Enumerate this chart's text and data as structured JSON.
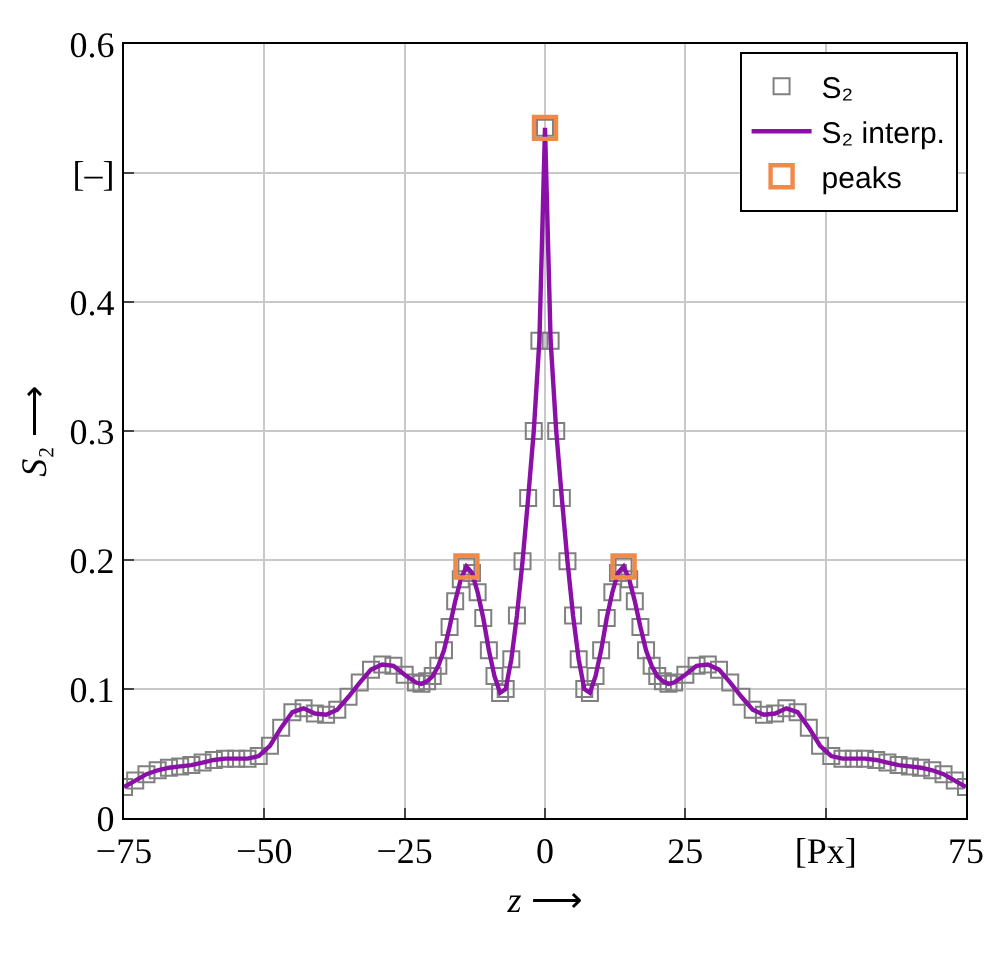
{
  "chart_data": {
    "type": "scatter",
    "xlabel": "z ⟶",
    "ylabel": "S₂ ⟶",
    "xlim": [
      -75,
      75
    ],
    "ylim": [
      0,
      0.6
    ],
    "xticks": [
      -75,
      -50,
      -25,
      0,
      25,
      {
        "value": 50,
        "label": "[Px]"
      },
      75
    ],
    "yticks": [
      0,
      0.1,
      0.2,
      0.3,
      0.4,
      {
        "value": 0.5,
        "label": "[–]"
      },
      0.6
    ],
    "grid": true,
    "legend": "top right",
    "series": [
      {
        "name": "S₂",
        "marker": "square",
        "color": "#808080",
        "x": [
          -75,
          -73,
          -71,
          -69,
          -67,
          -65,
          -63,
          -61,
          -59,
          -57,
          -55,
          -53,
          -51,
          -49,
          -47,
          -45,
          -43,
          -41,
          -39,
          -37,
          -35,
          -33,
          -31,
          -29,
          -27,
          -25,
          -23,
          -22,
          -21,
          -20,
          -19,
          -18,
          -17,
          -16,
          -15,
          -14,
          -13,
          -12,
          -11,
          -10,
          -9,
          -8,
          -7,
          -6,
          -5,
          -4,
          -3,
          -2,
          -1,
          0,
          1,
          2,
          3,
          4,
          5,
          6,
          7,
          8,
          9,
          10,
          11,
          12,
          13,
          14,
          15,
          16,
          17,
          18,
          19,
          20,
          21,
          22,
          23,
          25,
          27,
          29,
          31,
          33,
          35,
          37,
          39,
          41,
          43,
          45,
          47,
          49,
          51,
          53,
          55,
          57,
          59,
          61,
          63,
          65,
          67,
          69,
          71,
          73,
          75
        ],
        "values": [
          0.024,
          0.029,
          0.034,
          0.037,
          0.039,
          0.04,
          0.041,
          0.043,
          0.045,
          0.046,
          0.046,
          0.046,
          0.048,
          0.056,
          0.07,
          0.082,
          0.085,
          0.081,
          0.08,
          0.084,
          0.094,
          0.105,
          0.115,
          0.119,
          0.118,
          0.111,
          0.105,
          0.104,
          0.106,
          0.11,
          0.118,
          0.13,
          0.148,
          0.168,
          0.185,
          0.195,
          0.19,
          0.175,
          0.155,
          0.13,
          0.11,
          0.097,
          0.1,
          0.123,
          0.157,
          0.199,
          0.248,
          0.3,
          0.37,
          0.535,
          0.37,
          0.3,
          0.248,
          0.199,
          0.157,
          0.123,
          0.1,
          0.097,
          0.11,
          0.13,
          0.155,
          0.175,
          0.19,
          0.195,
          0.185,
          0.168,
          0.148,
          0.13,
          0.118,
          0.11,
          0.106,
          0.104,
          0.105,
          0.111,
          0.118,
          0.119,
          0.115,
          0.105,
          0.094,
          0.084,
          0.08,
          0.081,
          0.085,
          0.082,
          0.07,
          0.056,
          0.048,
          0.046,
          0.046,
          0.046,
          0.045,
          0.043,
          0.041,
          0.04,
          0.039,
          0.037,
          0.034,
          0.029,
          0.024
        ]
      },
      {
        "name": "S₂ interp.",
        "type": "line",
        "marker": "none",
        "line_style": "solid",
        "color": "#8b10a8",
        "x": [
          -75,
          -73,
          -71,
          -69,
          -67,
          -65,
          -63,
          -61,
          -59,
          -57,
          -55,
          -53,
          -51,
          -49,
          -47,
          -45,
          -43,
          -41,
          -39,
          -37,
          -35,
          -33,
          -31,
          -29,
          -27,
          -25,
          -23,
          -22,
          -21,
          -20,
          -19,
          -18,
          -17,
          -16,
          -15,
          -14,
          -13,
          -12,
          -11,
          -10,
          -9,
          -8,
          -7,
          -6,
          -5,
          -4,
          -3,
          -2,
          -1,
          0,
          1,
          2,
          3,
          4,
          5,
          6,
          7,
          8,
          9,
          10,
          11,
          12,
          13,
          14,
          15,
          16,
          17,
          18,
          19,
          20,
          21,
          22,
          23,
          25,
          27,
          29,
          31,
          33,
          35,
          37,
          39,
          41,
          43,
          45,
          47,
          49,
          51,
          53,
          55,
          57,
          59,
          61,
          63,
          65,
          67,
          69,
          71,
          73,
          75
        ],
        "values": [
          0.024,
          0.029,
          0.034,
          0.037,
          0.039,
          0.04,
          0.041,
          0.043,
          0.045,
          0.046,
          0.046,
          0.046,
          0.048,
          0.056,
          0.07,
          0.082,
          0.085,
          0.081,
          0.08,
          0.084,
          0.094,
          0.105,
          0.115,
          0.119,
          0.118,
          0.111,
          0.105,
          0.104,
          0.106,
          0.11,
          0.118,
          0.13,
          0.148,
          0.168,
          0.185,
          0.195,
          0.19,
          0.175,
          0.155,
          0.13,
          0.11,
          0.097,
          0.1,
          0.123,
          0.157,
          0.199,
          0.248,
          0.3,
          0.37,
          0.535,
          0.37,
          0.3,
          0.248,
          0.199,
          0.157,
          0.123,
          0.1,
          0.097,
          0.11,
          0.13,
          0.155,
          0.175,
          0.19,
          0.195,
          0.185,
          0.168,
          0.148,
          0.13,
          0.118,
          0.11,
          0.106,
          0.104,
          0.105,
          0.111,
          0.118,
          0.119,
          0.115,
          0.105,
          0.094,
          0.084,
          0.08,
          0.081,
          0.085,
          0.082,
          0.07,
          0.056,
          0.048,
          0.046,
          0.046,
          0.046,
          0.045,
          0.043,
          0.041,
          0.04,
          0.039,
          0.037,
          0.034,
          0.029,
          0.024
        ]
      },
      {
        "name": "peaks",
        "marker": "square",
        "color": "#f08a4b",
        "x": [
          -14,
          0,
          14
        ],
        "values": [
          0.195,
          0.535,
          0.195
        ]
      }
    ]
  }
}
